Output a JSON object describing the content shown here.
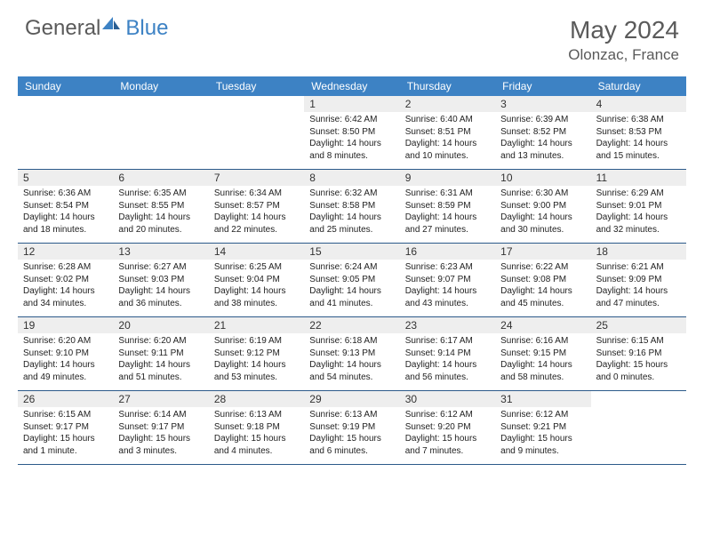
{
  "logo": {
    "word1": "General",
    "word2": "Blue"
  },
  "title": "May 2024",
  "location": "Olonzac, France",
  "colors": {
    "header_bg": "#3d82c4",
    "header_text": "#ffffff",
    "daynum_bg": "#eeeeee",
    "week_border": "#2c5a8a",
    "text_muted": "#5a5a5a"
  },
  "day_names": [
    "Sunday",
    "Monday",
    "Tuesday",
    "Wednesday",
    "Thursday",
    "Friday",
    "Saturday"
  ],
  "weeks": [
    [
      {
        "d": "",
        "sr": "",
        "ss": "",
        "dl1": "",
        "dl2": ""
      },
      {
        "d": "",
        "sr": "",
        "ss": "",
        "dl1": "",
        "dl2": ""
      },
      {
        "d": "",
        "sr": "",
        "ss": "",
        "dl1": "",
        "dl2": ""
      },
      {
        "d": "1",
        "sr": "Sunrise: 6:42 AM",
        "ss": "Sunset: 8:50 PM",
        "dl1": "Daylight: 14 hours",
        "dl2": "and 8 minutes."
      },
      {
        "d": "2",
        "sr": "Sunrise: 6:40 AM",
        "ss": "Sunset: 8:51 PM",
        "dl1": "Daylight: 14 hours",
        "dl2": "and 10 minutes."
      },
      {
        "d": "3",
        "sr": "Sunrise: 6:39 AM",
        "ss": "Sunset: 8:52 PM",
        "dl1": "Daylight: 14 hours",
        "dl2": "and 13 minutes."
      },
      {
        "d": "4",
        "sr": "Sunrise: 6:38 AM",
        "ss": "Sunset: 8:53 PM",
        "dl1": "Daylight: 14 hours",
        "dl2": "and 15 minutes."
      }
    ],
    [
      {
        "d": "5",
        "sr": "Sunrise: 6:36 AM",
        "ss": "Sunset: 8:54 PM",
        "dl1": "Daylight: 14 hours",
        "dl2": "and 18 minutes."
      },
      {
        "d": "6",
        "sr": "Sunrise: 6:35 AM",
        "ss": "Sunset: 8:55 PM",
        "dl1": "Daylight: 14 hours",
        "dl2": "and 20 minutes."
      },
      {
        "d": "7",
        "sr": "Sunrise: 6:34 AM",
        "ss": "Sunset: 8:57 PM",
        "dl1": "Daylight: 14 hours",
        "dl2": "and 22 minutes."
      },
      {
        "d": "8",
        "sr": "Sunrise: 6:32 AM",
        "ss": "Sunset: 8:58 PM",
        "dl1": "Daylight: 14 hours",
        "dl2": "and 25 minutes."
      },
      {
        "d": "9",
        "sr": "Sunrise: 6:31 AM",
        "ss": "Sunset: 8:59 PM",
        "dl1": "Daylight: 14 hours",
        "dl2": "and 27 minutes."
      },
      {
        "d": "10",
        "sr": "Sunrise: 6:30 AM",
        "ss": "Sunset: 9:00 PM",
        "dl1": "Daylight: 14 hours",
        "dl2": "and 30 minutes."
      },
      {
        "d": "11",
        "sr": "Sunrise: 6:29 AM",
        "ss": "Sunset: 9:01 PM",
        "dl1": "Daylight: 14 hours",
        "dl2": "and 32 minutes."
      }
    ],
    [
      {
        "d": "12",
        "sr": "Sunrise: 6:28 AM",
        "ss": "Sunset: 9:02 PM",
        "dl1": "Daylight: 14 hours",
        "dl2": "and 34 minutes."
      },
      {
        "d": "13",
        "sr": "Sunrise: 6:27 AM",
        "ss": "Sunset: 9:03 PM",
        "dl1": "Daylight: 14 hours",
        "dl2": "and 36 minutes."
      },
      {
        "d": "14",
        "sr": "Sunrise: 6:25 AM",
        "ss": "Sunset: 9:04 PM",
        "dl1": "Daylight: 14 hours",
        "dl2": "and 38 minutes."
      },
      {
        "d": "15",
        "sr": "Sunrise: 6:24 AM",
        "ss": "Sunset: 9:05 PM",
        "dl1": "Daylight: 14 hours",
        "dl2": "and 41 minutes."
      },
      {
        "d": "16",
        "sr": "Sunrise: 6:23 AM",
        "ss": "Sunset: 9:07 PM",
        "dl1": "Daylight: 14 hours",
        "dl2": "and 43 minutes."
      },
      {
        "d": "17",
        "sr": "Sunrise: 6:22 AM",
        "ss": "Sunset: 9:08 PM",
        "dl1": "Daylight: 14 hours",
        "dl2": "and 45 minutes."
      },
      {
        "d": "18",
        "sr": "Sunrise: 6:21 AM",
        "ss": "Sunset: 9:09 PM",
        "dl1": "Daylight: 14 hours",
        "dl2": "and 47 minutes."
      }
    ],
    [
      {
        "d": "19",
        "sr": "Sunrise: 6:20 AM",
        "ss": "Sunset: 9:10 PM",
        "dl1": "Daylight: 14 hours",
        "dl2": "and 49 minutes."
      },
      {
        "d": "20",
        "sr": "Sunrise: 6:20 AM",
        "ss": "Sunset: 9:11 PM",
        "dl1": "Daylight: 14 hours",
        "dl2": "and 51 minutes."
      },
      {
        "d": "21",
        "sr": "Sunrise: 6:19 AM",
        "ss": "Sunset: 9:12 PM",
        "dl1": "Daylight: 14 hours",
        "dl2": "and 53 minutes."
      },
      {
        "d": "22",
        "sr": "Sunrise: 6:18 AM",
        "ss": "Sunset: 9:13 PM",
        "dl1": "Daylight: 14 hours",
        "dl2": "and 54 minutes."
      },
      {
        "d": "23",
        "sr": "Sunrise: 6:17 AM",
        "ss": "Sunset: 9:14 PM",
        "dl1": "Daylight: 14 hours",
        "dl2": "and 56 minutes."
      },
      {
        "d": "24",
        "sr": "Sunrise: 6:16 AM",
        "ss": "Sunset: 9:15 PM",
        "dl1": "Daylight: 14 hours",
        "dl2": "and 58 minutes."
      },
      {
        "d": "25",
        "sr": "Sunrise: 6:15 AM",
        "ss": "Sunset: 9:16 PM",
        "dl1": "Daylight: 15 hours",
        "dl2": "and 0 minutes."
      }
    ],
    [
      {
        "d": "26",
        "sr": "Sunrise: 6:15 AM",
        "ss": "Sunset: 9:17 PM",
        "dl1": "Daylight: 15 hours",
        "dl2": "and 1 minute."
      },
      {
        "d": "27",
        "sr": "Sunrise: 6:14 AM",
        "ss": "Sunset: 9:17 PM",
        "dl1": "Daylight: 15 hours",
        "dl2": "and 3 minutes."
      },
      {
        "d": "28",
        "sr": "Sunrise: 6:13 AM",
        "ss": "Sunset: 9:18 PM",
        "dl1": "Daylight: 15 hours",
        "dl2": "and 4 minutes."
      },
      {
        "d": "29",
        "sr": "Sunrise: 6:13 AM",
        "ss": "Sunset: 9:19 PM",
        "dl1": "Daylight: 15 hours",
        "dl2": "and 6 minutes."
      },
      {
        "d": "30",
        "sr": "Sunrise: 6:12 AM",
        "ss": "Sunset: 9:20 PM",
        "dl1": "Daylight: 15 hours",
        "dl2": "and 7 minutes."
      },
      {
        "d": "31",
        "sr": "Sunrise: 6:12 AM",
        "ss": "Sunset: 9:21 PM",
        "dl1": "Daylight: 15 hours",
        "dl2": "and 9 minutes."
      },
      {
        "d": "",
        "sr": "",
        "ss": "",
        "dl1": "",
        "dl2": ""
      }
    ]
  ]
}
